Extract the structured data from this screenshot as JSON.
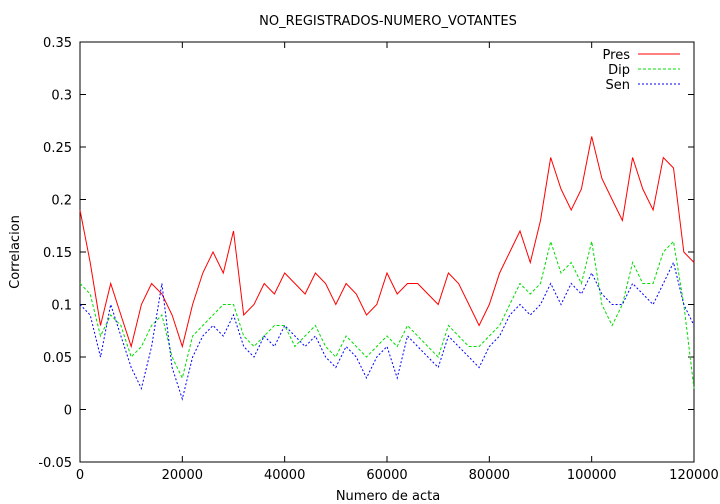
{
  "chart_data": {
    "type": "line",
    "title": "NO_REGISTRADOS-NUMERO_VOTANTES",
    "xlabel": "Numero de acta",
    "ylabel": "Correlacion",
    "xlim": [
      0,
      120000
    ],
    "ylim": [
      -0.05,
      0.35
    ],
    "x_ticks": [
      0,
      20000,
      40000,
      60000,
      80000,
      100000,
      120000
    ],
    "x_tick_labels": [
      "0",
      "20000",
      "40000",
      "60000",
      "80000",
      "100000",
      "120000"
    ],
    "y_ticks": [
      -0.05,
      0,
      0.05,
      0.1,
      0.15,
      0.2,
      0.25,
      0.3,
      0.35
    ],
    "y_tick_labels": [
      "-0.05",
      "0",
      "0.05",
      "0.1",
      "0.15",
      "0.2",
      "0.25",
      "0.3",
      "0.35"
    ],
    "grid": false,
    "legend_position": "top-right",
    "x": [
      0,
      2000,
      4000,
      6000,
      8000,
      10000,
      12000,
      14000,
      16000,
      18000,
      20000,
      22000,
      24000,
      26000,
      28000,
      30000,
      32000,
      34000,
      36000,
      38000,
      40000,
      42000,
      44000,
      46000,
      48000,
      50000,
      52000,
      54000,
      56000,
      58000,
      60000,
      62000,
      64000,
      66000,
      68000,
      70000,
      72000,
      74000,
      76000,
      78000,
      80000,
      82000,
      84000,
      86000,
      88000,
      90000,
      92000,
      94000,
      96000,
      98000,
      100000,
      102000,
      104000,
      106000,
      108000,
      110000,
      112000,
      114000,
      116000,
      118000,
      120000
    ],
    "series": [
      {
        "name": "Pres",
        "color": "#ff0000",
        "values": [
          0.19,
          0.14,
          0.08,
          0.12,
          0.09,
          0.06,
          0.1,
          0.12,
          0.11,
          0.09,
          0.06,
          0.1,
          0.13,
          0.15,
          0.13,
          0.17,
          0.09,
          0.1,
          0.12,
          0.11,
          0.13,
          0.12,
          0.11,
          0.13,
          0.12,
          0.1,
          0.12,
          0.11,
          0.09,
          0.1,
          0.13,
          0.11,
          0.12,
          0.12,
          0.11,
          0.1,
          0.13,
          0.12,
          0.1,
          0.08,
          0.1,
          0.13,
          0.15,
          0.17,
          0.14,
          0.18,
          0.24,
          0.21,
          0.19,
          0.21,
          0.26,
          0.22,
          0.2,
          0.18,
          0.24,
          0.21,
          0.19,
          0.24,
          0.23,
          0.15,
          0.14
        ]
      },
      {
        "name": "Dip",
        "color": "#00dd00",
        "values": [
          0.12,
          0.11,
          0.07,
          0.09,
          0.08,
          0.05,
          0.06,
          0.08,
          0.09,
          0.05,
          0.03,
          0.07,
          0.08,
          0.09,
          0.1,
          0.1,
          0.07,
          0.06,
          0.07,
          0.08,
          0.08,
          0.06,
          0.07,
          0.08,
          0.06,
          0.05,
          0.07,
          0.06,
          0.05,
          0.06,
          0.07,
          0.06,
          0.08,
          0.07,
          0.06,
          0.05,
          0.08,
          0.07,
          0.06,
          0.06,
          0.07,
          0.08,
          0.1,
          0.12,
          0.11,
          0.12,
          0.16,
          0.13,
          0.14,
          0.12,
          0.16,
          0.1,
          0.08,
          0.1,
          0.14,
          0.12,
          0.12,
          0.15,
          0.16,
          0.1,
          0.02
        ]
      },
      {
        "name": "Sen",
        "color": "#0000ff",
        "values": [
          0.1,
          0.09,
          0.05,
          0.1,
          0.07,
          0.04,
          0.02,
          0.06,
          0.12,
          0.04,
          0.01,
          0.05,
          0.07,
          0.08,
          0.07,
          0.09,
          0.06,
          0.05,
          0.07,
          0.06,
          0.08,
          0.07,
          0.06,
          0.07,
          0.05,
          0.04,
          0.06,
          0.05,
          0.03,
          0.05,
          0.06,
          0.03,
          0.07,
          0.06,
          0.05,
          0.04,
          0.07,
          0.06,
          0.05,
          0.04,
          0.06,
          0.07,
          0.09,
          0.1,
          0.09,
          0.1,
          0.12,
          0.1,
          0.12,
          0.11,
          0.13,
          0.11,
          0.1,
          0.1,
          0.12,
          0.11,
          0.1,
          0.12,
          0.14,
          0.1,
          0.08
        ]
      }
    ]
  }
}
